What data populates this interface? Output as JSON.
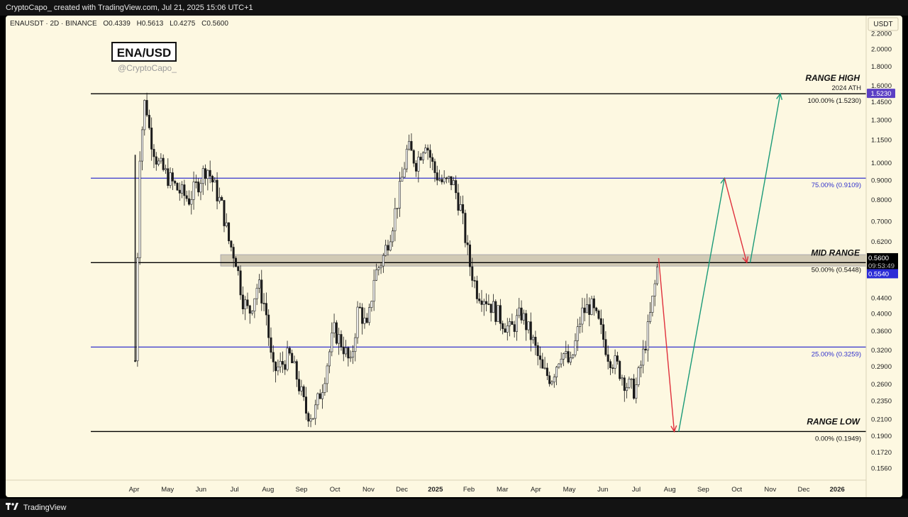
{
  "header": {
    "caption": "CryptoCapo_ created with TradingView.com, Jul 21, 2025 15:06 UTC+1"
  },
  "footer": {
    "brand": "TradingView"
  },
  "symbol_line": {
    "symbol": "ENAUSDT · 2D · BINANCE",
    "open": "O0.4339",
    "high": "H0.5613",
    "low": "L0.4275",
    "close": "C0.5600"
  },
  "badge": {
    "title": "ENA/USD",
    "handle": "@CryptoCapo_"
  },
  "currency": "USDT",
  "colors": {
    "background": "#fdf8e1",
    "fib": "#3333cc",
    "up": "#1a9a78",
    "down": "#e0303c",
    "last_price": "#000000",
    "highlight": "#5b3fc4"
  },
  "chart_data": {
    "type": "candlestick",
    "y_scale": "log",
    "ylim": [
      0.145,
      2.45
    ],
    "x_labels": [
      "Apr",
      "May",
      "Jun",
      "Jul",
      "Aug",
      "Sep",
      "Oct",
      "Nov",
      "Dec",
      "2025",
      "Feb",
      "Mar",
      "Apr",
      "May",
      "Jun",
      "Jul",
      "Aug",
      "Sep",
      "Oct",
      "Nov",
      "Dec",
      "2026"
    ],
    "x_range": [
      "2024-04",
      "2026-01"
    ],
    "y_ticks": [
      "2.2000",
      "2.0000",
      "1.8000",
      "1.6000",
      "1.4500",
      "1.3000",
      "1.1500",
      "1.0000",
      "0.9000",
      "0.8000",
      "0.7000",
      "0.6200",
      "0.4400",
      "0.4000",
      "0.3600",
      "0.3200",
      "0.2900",
      "0.2600",
      "0.2350",
      "0.2100",
      "0.1900",
      "0.1720",
      "0.1560"
    ],
    "levels": [
      {
        "label": "RANGE HIGH",
        "sub": "2024 ATH",
        "fib": "100.00% (1.5230)",
        "price": 1.523,
        "tag": "1.5230"
      },
      {
        "label": "",
        "sub": "",
        "fib": "75.00% (0.9109)",
        "price": 0.9109,
        "tag": ""
      },
      {
        "label": "MID RANGE",
        "sub": "",
        "fib": "50.00% (0.5448)",
        "price": 0.5448,
        "tag": ""
      },
      {
        "label": "",
        "sub": "",
        "fib": "25.00% (0.3259)",
        "price": 0.3259,
        "tag": ""
      },
      {
        "label": "RANGE LOW",
        "sub": "",
        "fib": "0.00% (0.1949)",
        "price": 0.1949,
        "tag": ""
      }
    ],
    "mid_zone": [
      0.5335,
      0.572
    ],
    "last_price": {
      "value": "0.5600",
      "countdown": "09:53:49",
      "price": 0.56
    },
    "level_tag": {
      "value": "0.5540",
      "price": 0.554
    },
    "price_path": [
      [
        "2024-04-02",
        0.3
      ],
      [
        "2024-04-06",
        1.05
      ],
      [
        "2024-04-11",
        1.5
      ],
      [
        "2024-04-15",
        1.2
      ],
      [
        "2024-04-22",
        1.0
      ],
      [
        "2024-05-01",
        0.92
      ],
      [
        "2024-05-10",
        0.85
      ],
      [
        "2024-05-20",
        0.8
      ],
      [
        "2024-05-28",
        0.88
      ],
      [
        "2024-06-06",
        0.98
      ],
      [
        "2024-06-12",
        0.88
      ],
      [
        "2024-06-20",
        0.76
      ],
      [
        "2024-06-26",
        0.62
      ],
      [
        "2024-07-02",
        0.56
      ],
      [
        "2024-07-08",
        0.44
      ],
      [
        "2024-07-14",
        0.4
      ],
      [
        "2024-07-22",
        0.48
      ],
      [
        "2024-07-29",
        0.41
      ],
      [
        "2024-08-05",
        0.28
      ],
      [
        "2024-08-12",
        0.29
      ],
      [
        "2024-08-20",
        0.31
      ],
      [
        "2024-08-27",
        0.27
      ],
      [
        "2024-09-05",
        0.22
      ],
      [
        "2024-09-12",
        0.215
      ],
      [
        "2024-09-20",
        0.26
      ],
      [
        "2024-09-30",
        0.36
      ],
      [
        "2024-10-08",
        0.33
      ],
      [
        "2024-10-15",
        0.29
      ],
      [
        "2024-10-22",
        0.42
      ],
      [
        "2024-10-30",
        0.36
      ],
      [
        "2024-11-06",
        0.5
      ],
      [
        "2024-11-14",
        0.56
      ],
      [
        "2024-11-22",
        0.68
      ],
      [
        "2024-11-30",
        0.87
      ],
      [
        "2024-12-06",
        1.1
      ],
      [
        "2024-12-14",
        1.0
      ],
      [
        "2024-12-22",
        1.15
      ],
      [
        "2024-12-30",
        0.95
      ],
      [
        "2025-01-08",
        0.88
      ],
      [
        "2025-01-16",
        0.9
      ],
      [
        "2025-01-24",
        0.75
      ],
      [
        "2025-02-01",
        0.55
      ],
      [
        "2025-02-08",
        0.46
      ],
      [
        "2025-02-16",
        0.44
      ],
      [
        "2025-02-26",
        0.4
      ],
      [
        "2025-03-08",
        0.36
      ],
      [
        "2025-03-18",
        0.4
      ],
      [
        "2025-03-28",
        0.34
      ],
      [
        "2025-04-07",
        0.28
      ],
      [
        "2025-04-15",
        0.27
      ],
      [
        "2025-04-24",
        0.32
      ],
      [
        "2025-05-02",
        0.29
      ],
      [
        "2025-05-12",
        0.4
      ],
      [
        "2025-05-20",
        0.42
      ],
      [
        "2025-05-28",
        0.37
      ],
      [
        "2025-06-06",
        0.31
      ],
      [
        "2025-06-14",
        0.29
      ],
      [
        "2025-06-22",
        0.26
      ],
      [
        "2025-06-30",
        0.25
      ],
      [
        "2025-07-06",
        0.3
      ],
      [
        "2025-07-12",
        0.37
      ],
      [
        "2025-07-17",
        0.46
      ],
      [
        "2025-07-21",
        0.56
      ]
    ],
    "projection_arrows": [
      {
        "color": "down",
        "from": [
          "2025-07-21",
          0.56
        ],
        "to": [
          "2025-08-05",
          0.1949
        ]
      },
      {
        "color": "up",
        "from": [
          "2025-08-09",
          0.1949
        ],
        "to": [
          "2025-09-20",
          0.9109
        ]
      },
      {
        "color": "down",
        "from": [
          "2025-09-20",
          0.9109
        ],
        "to": [
          "2025-10-10",
          0.5448
        ]
      },
      {
        "color": "up",
        "from": [
          "2025-10-13",
          0.5448
        ],
        "to": [
          "2025-11-10",
          1.523
        ]
      }
    ]
  }
}
